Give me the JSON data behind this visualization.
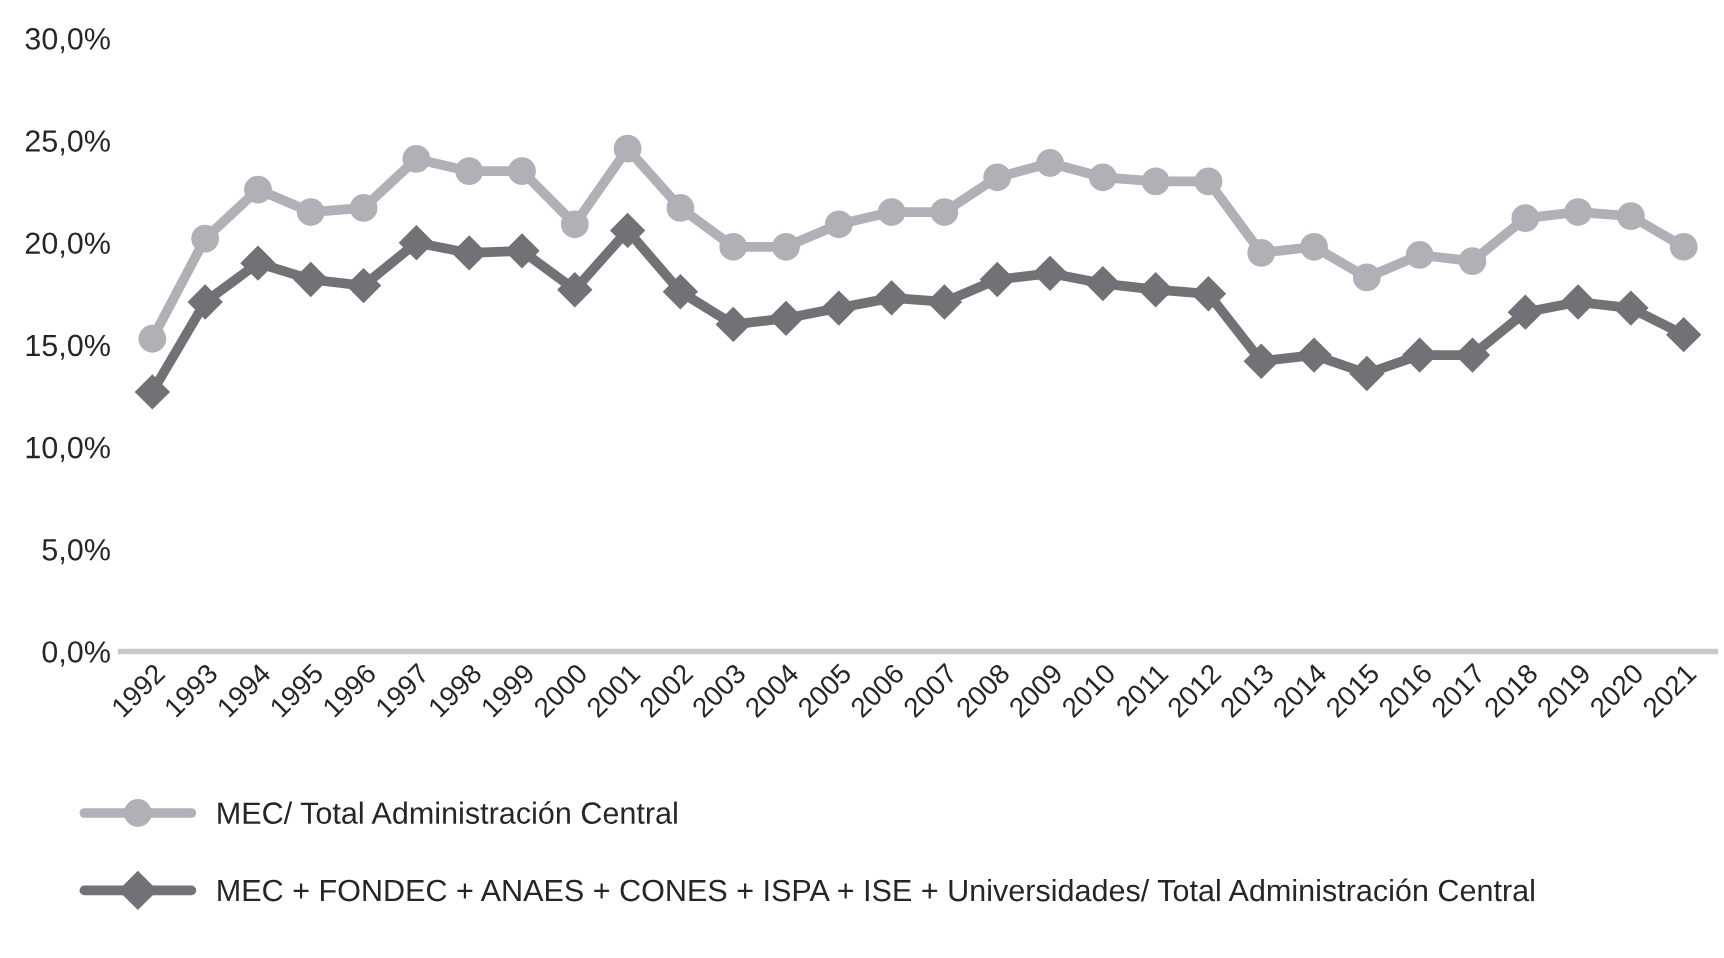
{
  "chart_data": {
    "type": "line",
    "categories": [
      "1992",
      "1993",
      "1994",
      "1995",
      "1996",
      "1997",
      "1998",
      "1999",
      "2000",
      "2001",
      "2002",
      "2003",
      "2004",
      "2005",
      "2006",
      "2007",
      "2008",
      "2009",
      "2010",
      "2011",
      "2012",
      "2013",
      "2014",
      "2015",
      "2016",
      "2017",
      "2018",
      "2019",
      "2020",
      "2021"
    ],
    "series": [
      {
        "name": "MEC/ Total Administración Central",
        "color": "#b1b0b6",
        "marker": "circle",
        "values": [
          15.3,
          20.2,
          22.6,
          21.5,
          21.7,
          24.1,
          23.5,
          23.5,
          20.9,
          24.6,
          21.7,
          19.8,
          19.8,
          20.9,
          21.5,
          21.5,
          23.2,
          23.9,
          23.2,
          23.0,
          23.0,
          19.5,
          19.8,
          18.3,
          19.4,
          19.1,
          21.2,
          21.5,
          21.3,
          19.8
        ]
      },
      {
        "name": "MEC + FONDEC + ANAES + CONES + ISPA + ISE + Universidades/ Total Administración Central",
        "color": "#727176",
        "marker": "diamond",
        "values": [
          12.7,
          17.1,
          19.0,
          18.2,
          17.9,
          20.0,
          19.5,
          19.6,
          17.7,
          20.6,
          17.6,
          16.0,
          16.3,
          16.8,
          17.3,
          17.1,
          18.2,
          18.5,
          18.0,
          17.7,
          17.5,
          14.2,
          14.5,
          13.6,
          14.5,
          14.5,
          16.6,
          17.1,
          16.8,
          15.5
        ]
      }
    ],
    "ylim": [
      0,
      30
    ],
    "yticks": [
      {
        "value": 0,
        "label": "0,0%"
      },
      {
        "value": 5,
        "label": "5,0%"
      },
      {
        "value": 10,
        "label": "10,0%"
      },
      {
        "value": 15,
        "label": "15,0%"
      },
      {
        "value": 20,
        "label": "20,0%"
      },
      {
        "value": 25,
        "label": "25,0%"
      },
      {
        "value": 30,
        "label": "30,0%"
      }
    ],
    "grid": false,
    "legend": "bottom",
    "line_style": "solid"
  }
}
